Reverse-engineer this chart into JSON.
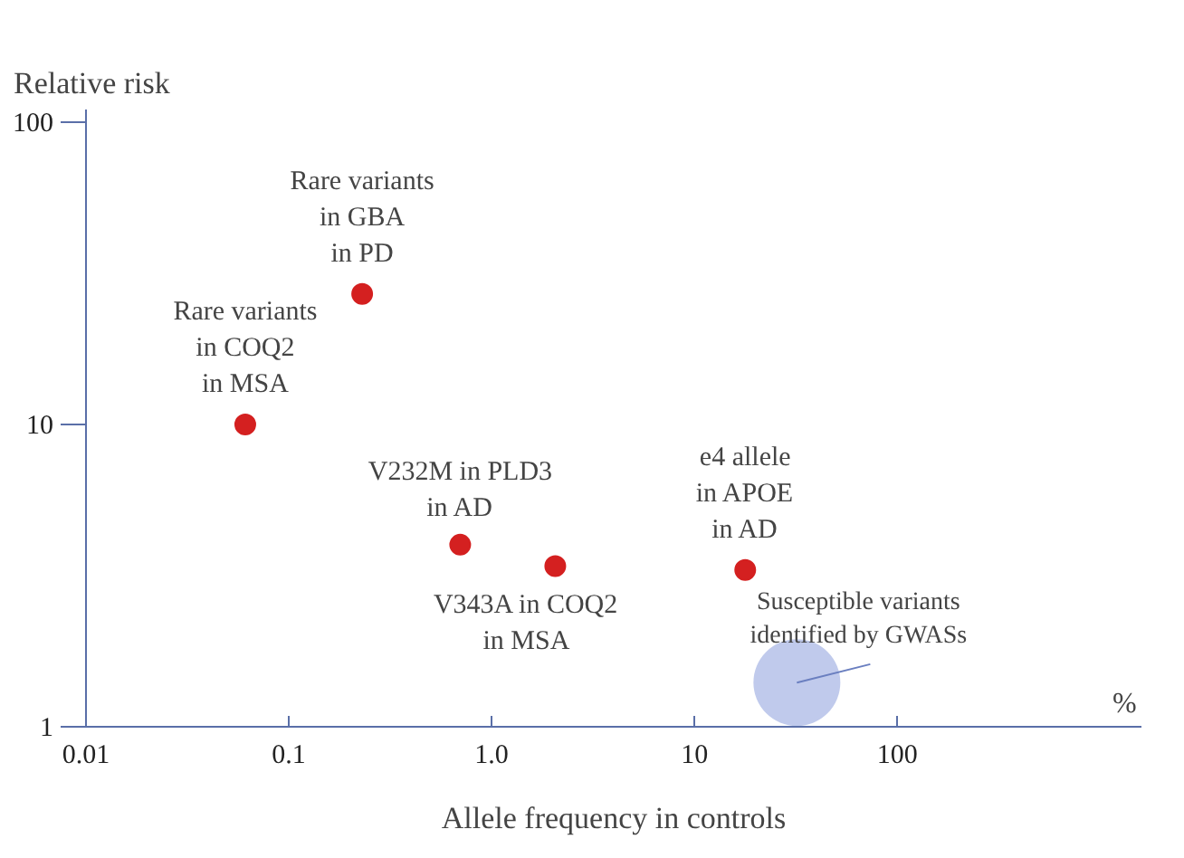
{
  "chart_data": {
    "type": "scatter",
    "xlabel": "Allele frequency in controls",
    "ylabel": "Relative risk",
    "log": "xy",
    "grid": false,
    "marker": "circle",
    "xlim": [
      0.01,
      1600
    ],
    "ylim": [
      1,
      110
    ],
    "xticks": [
      0.01,
      0.1,
      {
        "value": 1,
        "label": "1.0"
      },
      10,
      100
    ],
    "yticks": [
      1,
      10,
      100
    ],
    "series": [
      {
        "color": "#d42020",
        "x": [
          0.061,
          0.23,
          0.7,
          2.06,
          17.8
        ],
        "values": [
          10,
          27,
          4.0,
          3.4,
          3.3
        ],
        "value_labels": [
          "Rare variants\nin COQ2\nin MSA",
          "Rare variants\nin GBA\nin PD",
          "V232M in PLD3\nin AD",
          "V343A in COQ2\nin MSA",
          "e4 allele\nin APOE\nin AD"
        ]
      },
      {
        "color": "#8c9fdc",
        "x": [
          32
        ],
        "values": [
          1.4
        ]
      }
    ],
    "annotations": [
      "%",
      {
        "text": "Susceptible variants\nidentified by GWASs",
        "x": 32,
        "y": 1.4
      }
    ]
  }
}
